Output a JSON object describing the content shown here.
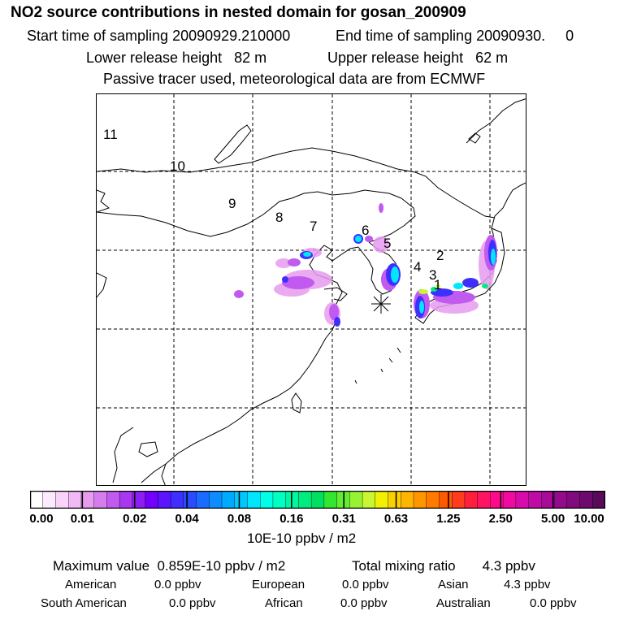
{
  "header": {
    "title": "NO2 source contributions in nested domain for gosan_200909",
    "start_label": "Start time of sampling 20090929.210000",
    "end_label": "End time of sampling 20090930.     0",
    "lower_label": "Lower release height   82 m",
    "upper_label": "Upper release height   62 m",
    "tracer_note": "Passive tracer used, meteorological data are from ECMWF"
  },
  "map": {
    "region_labels": [
      "11",
      "10",
      "9",
      "8",
      "7",
      "6",
      "5",
      "4",
      "3",
      "2",
      "1"
    ],
    "receptor_marker": "asterisk-icon"
  },
  "colorbar": {
    "tick_labels": [
      "0.00",
      "0.01",
      "0.02",
      "0.04",
      "0.08",
      "0.16",
      "0.31",
      "0.63",
      "1.25",
      "2.50",
      "5.00",
      "10.00"
    ],
    "unit": "10E-10 ppbv / m2",
    "colors": [
      "#ffffff",
      "#fcebfc",
      "#f8d4f8",
      "#f3b9f4",
      "#e79cef",
      "#d57dee",
      "#c15aee",
      "#a937ef",
      "#8c1ef5",
      "#7300ff",
      "#5a14ff",
      "#3f2fff",
      "#2a4bff",
      "#1a6bff",
      "#0d8cff",
      "#00aaff",
      "#00c8ff",
      "#00e6ff",
      "#00ffe6",
      "#00ffc0",
      "#00f6a0",
      "#00ec80",
      "#00e060",
      "#32e632",
      "#64ec32",
      "#96f232",
      "#c8f632",
      "#f0f000",
      "#fad000",
      "#ffb400",
      "#ff9600",
      "#ff7a00",
      "#ff5a00",
      "#ff3c1e",
      "#ff1e3c",
      "#ff1464",
      "#ff0a8c",
      "#f00aa0",
      "#d70aaa",
      "#bf0aa5",
      "#a80a9a",
      "#940a8c",
      "#800a7e",
      "#6e0a6e",
      "#5a0a5a"
    ]
  },
  "summary": {
    "maximum": "Maximum value  0.859E-10 ppbv / m2",
    "total": "Total mixing ratio       4.3 ppbv",
    "american": "American",
    "american_val": "0.0 ppbv",
    "european": "European",
    "european_val": "0.0 ppbv",
    "asian": "Asian",
    "asian_val": "4.3 ppbv",
    "south_american": "South American",
    "south_american_val": "0.0 ppbv",
    "african": "African",
    "african_val": "0.0 ppbv",
    "australian": "Australian",
    "australian_val": "0.0 ppbv"
  }
}
